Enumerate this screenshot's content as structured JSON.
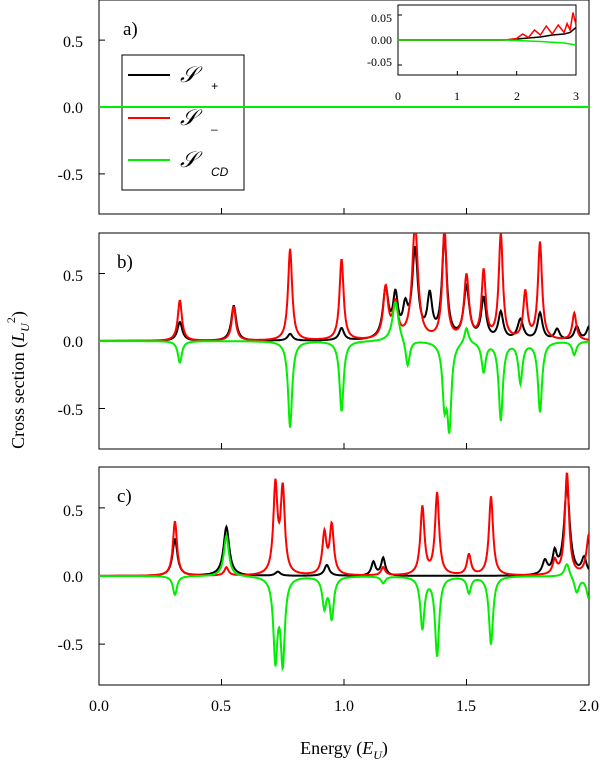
{
  "chart_data": [
    {
      "panel": "a",
      "type": "line",
      "label": "a)",
      "x": [
        0,
        2.0
      ],
      "xlim": [
        0.0,
        2.0
      ],
      "ylim": [
        -0.8,
        0.8
      ],
      "yticks": [
        "0.5",
        "0.0",
        "-0.5"
      ],
      "ytick_values": [
        0.5,
        0.0,
        -0.5
      ],
      "series": [
        {
          "name": "S+",
          "color": "#000000",
          "values": [
            0,
            0
          ]
        },
        {
          "name": "S-",
          "color": "#ff0000",
          "values": [
            0,
            0
          ]
        },
        {
          "name": "SCD",
          "color": "#00ee00",
          "values": [
            0,
            0
          ]
        }
      ],
      "legend": {
        "placement": "left",
        "entries": [
          {
            "symbol": "𝒮",
            "sub": "+",
            "color": "#000000"
          },
          {
            "symbol": "𝒮",
            "sub": "–",
            "color": "#ff0000"
          },
          {
            "symbol": "𝒮",
            "sub": "CD",
            "color": "#00ee00"
          }
        ]
      },
      "inset": {
        "placement": "top-right",
        "xlim": [
          0,
          3
        ],
        "ylim": [
          -0.07,
          0.07
        ],
        "xticks": [
          "0",
          "1",
          "2",
          "3"
        ],
        "xtick_values": [
          0,
          1,
          2,
          3
        ],
        "yticks": [
          "0.05",
          "0.00",
          "-0.05"
        ],
        "ytick_values": [
          0.05,
          0.0,
          -0.05
        ],
        "series": [
          {
            "name": "S+",
            "color": "#000000",
            "x": [
              0,
              1.8,
              2.0,
              2.2,
              2.4,
              2.6,
              2.8,
              2.9,
              2.95,
              3.0
            ],
            "y": [
              0,
              0,
              0.002,
              0.004,
              0.006,
              0.01,
              0.012,
              0.015,
              0.02,
              0.025
            ]
          },
          {
            "name": "S-",
            "color": "#ff0000",
            "x": [
              0,
              1.8,
              2.0,
              2.1,
              2.2,
              2.3,
              2.4,
              2.5,
              2.6,
              2.7,
              2.8,
              2.85,
              2.9,
              2.95,
              3.0
            ],
            "y": [
              0,
              0,
              0.003,
              0.012,
              0.005,
              0.02,
              0.01,
              0.028,
              0.012,
              0.03,
              0.015,
              0.033,
              0.02,
              0.055,
              0.03
            ]
          },
          {
            "name": "SCD",
            "color": "#00ee00",
            "x": [
              0,
              1.8,
              2.0,
              2.4,
              2.8,
              3.0
            ],
            "y": [
              0,
              0,
              -0.001,
              -0.003,
              -0.006,
              -0.01
            ]
          }
        ]
      }
    },
    {
      "panel": "b",
      "type": "line",
      "label": "b)",
      "xlim": [
        0.0,
        2.0
      ],
      "ylim": [
        -0.8,
        0.8
      ],
      "yticks": [
        "0.5",
        "0.0",
        "-0.5"
      ],
      "ytick_values": [
        0.5,
        0.0,
        -0.5
      ],
      "peaks": {
        "S+": [
          [
            0.33,
            0.14,
            0.012
          ],
          [
            0.55,
            0.26,
            0.012
          ],
          [
            0.78,
            0.05,
            0.012
          ],
          [
            0.99,
            0.09,
            0.012
          ],
          [
            1.17,
            0.36,
            0.014
          ],
          [
            1.21,
            0.3,
            0.012
          ],
          [
            1.25,
            0.2,
            0.012
          ],
          [
            1.29,
            0.65,
            0.014
          ],
          [
            1.35,
            0.3,
            0.012
          ],
          [
            1.41,
            0.75,
            0.012
          ],
          [
            1.5,
            0.38,
            0.014
          ],
          [
            1.57,
            0.3,
            0.012
          ],
          [
            1.64,
            0.2,
            0.012
          ],
          [
            1.72,
            0.15,
            0.014
          ],
          [
            1.8,
            0.2,
            0.012
          ],
          [
            1.87,
            0.08,
            0.012
          ],
          [
            1.95,
            0.1,
            0.012
          ],
          [
            2.0,
            0.1,
            0.012
          ]
        ],
        "S-": [
          [
            0.33,
            0.3,
            0.01
          ],
          [
            0.55,
            0.25,
            0.01
          ],
          [
            0.78,
            0.68,
            0.01
          ],
          [
            0.99,
            0.6,
            0.01
          ],
          [
            1.17,
            0.38,
            0.012
          ],
          [
            1.21,
            0.25,
            0.012
          ],
          [
            1.29,
            0.85,
            0.014
          ],
          [
            1.41,
            0.82,
            0.01
          ],
          [
            1.5,
            0.47,
            0.012
          ],
          [
            1.57,
            0.5,
            0.01
          ],
          [
            1.64,
            0.78,
            0.01
          ],
          [
            1.74,
            0.35,
            0.01
          ],
          [
            1.8,
            0.72,
            0.01
          ],
          [
            1.94,
            0.2,
            0.01
          ]
        ],
        "SCD": [
          [
            0.33,
            -0.16,
            0.01
          ],
          [
            0.55,
            0.0,
            0.01
          ],
          [
            0.78,
            -0.64,
            0.01
          ],
          [
            0.99,
            -0.52,
            0.01
          ],
          [
            1.21,
            0.3,
            0.015
          ],
          [
            1.26,
            -0.2,
            0.01
          ],
          [
            1.41,
            -0.42,
            0.01
          ],
          [
            1.43,
            -0.6,
            0.01
          ],
          [
            1.5,
            0.12,
            0.01
          ],
          [
            1.57,
            -0.22,
            0.01
          ],
          [
            1.64,
            -0.58,
            0.01
          ],
          [
            1.72,
            -0.3,
            0.01
          ],
          [
            1.8,
            -0.52,
            0.01
          ],
          [
            1.94,
            -0.1,
            0.01
          ]
        ]
      },
      "series": [
        {
          "name": "S+",
          "color": "#000000"
        },
        {
          "name": "S-",
          "color": "#ff0000"
        },
        {
          "name": "SCD",
          "color": "#00ee00"
        }
      ]
    },
    {
      "panel": "c",
      "type": "line",
      "label": "c)",
      "xlim": [
        0.0,
        2.0
      ],
      "ylim": [
        -0.8,
        0.8
      ],
      "yticks": [
        "0.5",
        "0.0",
        "-0.5"
      ],
      "ytick_values": [
        0.5,
        0.0,
        -0.5
      ],
      "xticks": [
        "0.0",
        "0.5",
        "1.0",
        "1.5",
        "2.0"
      ],
      "xtick_values": [
        0.0,
        0.5,
        1.0,
        1.5,
        2.0
      ],
      "peaks": {
        "S+": [
          [
            0.31,
            0.27,
            0.012
          ],
          [
            0.52,
            0.36,
            0.014
          ],
          [
            0.73,
            0.03,
            0.012
          ],
          [
            0.93,
            0.08,
            0.012
          ],
          [
            1.12,
            0.1,
            0.01
          ],
          [
            1.16,
            0.13,
            0.01
          ],
          [
            1.82,
            0.1,
            0.012
          ],
          [
            1.86,
            0.15,
            0.01
          ],
          [
            1.91,
            0.65,
            0.014
          ],
          [
            1.98,
            0.12,
            0.012
          ]
        ],
        "S-": [
          [
            0.31,
            0.4,
            0.01
          ],
          [
            0.52,
            0.06,
            0.01
          ],
          [
            0.72,
            0.65,
            0.01
          ],
          [
            0.75,
            0.62,
            0.01
          ],
          [
            0.92,
            0.3,
            0.01
          ],
          [
            0.95,
            0.36,
            0.01
          ],
          [
            1.16,
            0.06,
            0.01
          ],
          [
            1.32,
            0.5,
            0.01
          ],
          [
            1.38,
            0.6,
            0.01
          ],
          [
            1.51,
            0.15,
            0.01
          ],
          [
            1.6,
            0.58,
            0.01
          ],
          [
            1.86,
            0.1,
            0.01
          ],
          [
            1.91,
            0.75,
            0.01
          ],
          [
            2.0,
            0.3,
            0.012
          ]
        ],
        "SCD": [
          [
            0.31,
            -0.14,
            0.01
          ],
          [
            0.52,
            0.3,
            0.012
          ],
          [
            0.72,
            -0.6,
            0.01
          ],
          [
            0.75,
            -0.62,
            0.01
          ],
          [
            0.92,
            -0.22,
            0.01
          ],
          [
            0.95,
            -0.3,
            0.01
          ],
          [
            1.16,
            -0.05,
            0.01
          ],
          [
            1.32,
            -0.38,
            0.01
          ],
          [
            1.38,
            -0.58,
            0.01
          ],
          [
            1.51,
            -0.12,
            0.01
          ],
          [
            1.6,
            -0.5,
            0.01
          ],
          [
            1.91,
            0.1,
            0.012
          ],
          [
            1.95,
            -0.12,
            0.012
          ],
          [
            2.0,
            -0.16,
            0.012
          ]
        ]
      },
      "series": [
        {
          "name": "S+",
          "color": "#000000"
        },
        {
          "name": "S-",
          "color": "#ff0000"
        },
        {
          "name": "SCD",
          "color": "#00ee00"
        }
      ]
    }
  ],
  "axes": {
    "ylabel": "Cross section (",
    "ylabel_symbol": "L",
    "ylabel_sub": "U",
    "ylabel_sup": "2",
    "ylabel_end": ")",
    "xlabel": "Energy (",
    "xlabel_symbol": "E",
    "xlabel_sub": "U",
    "xlabel_end": ")"
  }
}
